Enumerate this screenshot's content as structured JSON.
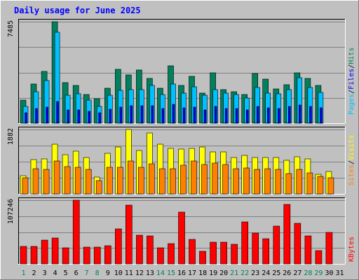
{
  "chart_data": {
    "type": "bar",
    "title": "Daily usage for June 2025",
    "categories": [
      "1",
      "2",
      "3",
      "4",
      "5",
      "6",
      "7",
      "8",
      "9",
      "10",
      "11",
      "12",
      "13",
      "14",
      "15",
      "16",
      "17",
      "18",
      "19",
      "20",
      "21",
      "22",
      "23",
      "24",
      "25",
      "26",
      "27",
      "28",
      "29",
      "30",
      "31"
    ],
    "weekend_days": [
      "1",
      "7",
      "8",
      "14",
      "15",
      "21",
      "22",
      "28",
      "29"
    ],
    "panels": [
      {
        "id": "hits-files",
        "ymax_label": "7485",
        "ymax": 7485,
        "legend": [
          {
            "text": "Hits",
            "color": "#00805c"
          },
          {
            "text": "/",
            "color": "#000000"
          },
          {
            "text": "Files",
            "color": "#0000ff"
          },
          {
            "text": "/",
            "color": "#000000"
          },
          {
            "text": "Pages",
            "color": "#00c0ff"
          }
        ],
        "series": [
          {
            "name": "Hits",
            "color": "#00805c",
            "values": [
              1726,
              2875,
              3835,
              7485,
              2971,
              2779,
              2108,
              1822,
              2589,
              3979,
              3548,
              3931,
              3307,
              2588,
              4209,
              2780,
              3460,
              2212,
              3739,
              2490,
              2299,
              2137,
              3643,
              3260,
              2539,
              2845,
              3700,
              3317,
              2805,
              0,
              0
            ]
          },
          {
            "name": "Pages",
            "color": "#00c0ff",
            "values": [
              1245,
              2315,
              3145,
              6725,
              2052,
              2169,
              1689,
              1245,
              2045,
              2409,
              2495,
              2495,
              2795,
              2125,
              2889,
              2225,
              2695,
              2045,
              2495,
              2222,
              2125,
              1869,
              2645,
              2209,
              2145,
              2495,
              3345,
              2645,
              2265,
              0,
              0
            ]
          },
          {
            "name": "Files",
            "color": "#0000ff",
            "values": [
              800,
              1100,
              1200,
              1600,
              1000,
              1000,
              900,
              800,
              1050,
              1200,
              1300,
              1300,
              1300,
              1100,
              1400,
              1150,
              1200,
              1000,
              1250,
              1100,
              1100,
              1000,
              1250,
              1150,
              1100,
              1250,
              1350,
              1250,
              1150,
              0,
              0
            ]
          }
        ]
      },
      {
        "id": "visits-sites",
        "ymax_label": "1882",
        "ymax": 1882,
        "legend": [
          {
            "text": "Visits",
            "color": "#ffff00"
          },
          {
            "text": "/",
            "color": "#000000"
          },
          {
            "text": "Sites",
            "color": "#ff8000"
          }
        ],
        "series": [
          {
            "name": "Visits",
            "color": "#ffff00",
            "values": [
              542,
              997,
              1015,
              1459,
              1147,
              1256,
              1057,
              489,
              1183,
              1376,
              1882,
              1272,
              1774,
              1459,
              1328,
              1306,
              1320,
              1367,
              1227,
              1236,
              1065,
              1124,
              1067,
              1059,
              1065,
              984,
              1078,
              1024,
              571,
              661,
              0
            ]
          },
          {
            "name": "Sites",
            "color": "#ff8000",
            "values": [
              469,
              728,
              719,
              961,
              800,
              785,
              724,
              380,
              784,
              774,
              962,
              774,
              874,
              736,
              728,
              840,
              955,
              850,
              890,
              860,
              730,
              760,
              710,
              730,
              720,
              590,
              720,
              620,
              510,
              470,
              0
            ]
          }
        ]
      },
      {
        "id": "kbytes",
        "ymax_label": "107246",
        "ymax": 107246,
        "legend": [
          {
            "text": "KBytes",
            "color": "#ff0000"
          }
        ],
        "series": [
          {
            "name": "KBytes",
            "color": "#ff0000",
            "values": [
              29300,
              29300,
              40100,
              43300,
              27300,
              107246,
              28000,
              28800,
              30900,
              58700,
              98500,
              48700,
              47600,
              27000,
              34200,
              87000,
              41800,
              21300,
              36200,
              36200,
              32700,
              70600,
              51500,
              42300,
              63500,
              100000,
              68000,
              46800,
              22300,
              52800,
              0
            ]
          }
        ]
      }
    ]
  }
}
